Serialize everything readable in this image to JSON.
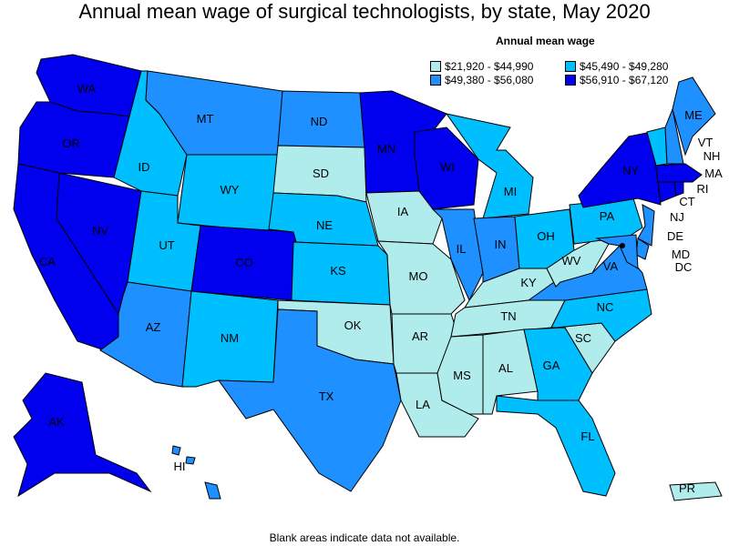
{
  "title": "Annual mean wage of surgical technologists, by state, May 2020",
  "legend": {
    "title": "Annual mean wage",
    "items": [
      {
        "label": "$21,920 - $44,990",
        "color": "#b0ecec"
      },
      {
        "label": "$45,490 - $49,280",
        "color": "#00bfff"
      },
      {
        "label": "$49,380 - $56,080",
        "color": "#1e90ff"
      },
      {
        "label": "$56,910 - $67,120",
        "color": "#0000ee"
      }
    ]
  },
  "footnote": "Blank areas indicate data not available.",
  "states": [
    {
      "abbr": "WA",
      "tier": 3
    },
    {
      "abbr": "OR",
      "tier": 3
    },
    {
      "abbr": "CA",
      "tier": 3
    },
    {
      "abbr": "NV",
      "tier": 3
    },
    {
      "abbr": "ID",
      "tier": 1
    },
    {
      "abbr": "MT",
      "tier": 2
    },
    {
      "abbr": "WY",
      "tier": 1
    },
    {
      "abbr": "UT",
      "tier": 1
    },
    {
      "abbr": "AZ",
      "tier": 2
    },
    {
      "abbr": "CO",
      "tier": 3
    },
    {
      "abbr": "NM",
      "tier": 1
    },
    {
      "abbr": "ND",
      "tier": 2
    },
    {
      "abbr": "SD",
      "tier": 0
    },
    {
      "abbr": "NE",
      "tier": 1
    },
    {
      "abbr": "KS",
      "tier": 1
    },
    {
      "abbr": "OK",
      "tier": 0
    },
    {
      "abbr": "TX",
      "tier": 2
    },
    {
      "abbr": "MN",
      "tier": 3
    },
    {
      "abbr": "IA",
      "tier": 0
    },
    {
      "abbr": "MO",
      "tier": 0
    },
    {
      "abbr": "AR",
      "tier": 0
    },
    {
      "abbr": "LA",
      "tier": 0
    },
    {
      "abbr": "WI",
      "tier": 3
    },
    {
      "abbr": "IL",
      "tier": 2
    },
    {
      "abbr": "MI",
      "tier": 1
    },
    {
      "abbr": "IN",
      "tier": 2
    },
    {
      "abbr": "OH",
      "tier": 1
    },
    {
      "abbr": "KY",
      "tier": 0
    },
    {
      "abbr": "TN",
      "tier": 0
    },
    {
      "abbr": "MS",
      "tier": 0
    },
    {
      "abbr": "AL",
      "tier": 0
    },
    {
      "abbr": "GA",
      "tier": 1
    },
    {
      "abbr": "FL",
      "tier": 1
    },
    {
      "abbr": "SC",
      "tier": 0
    },
    {
      "abbr": "NC",
      "tier": 1
    },
    {
      "abbr": "VA",
      "tier": 2
    },
    {
      "abbr": "WV",
      "tier": 0
    },
    {
      "abbr": "PA",
      "tier": 1
    },
    {
      "abbr": "NY",
      "tier": 3
    },
    {
      "abbr": "VT",
      "tier": 1
    },
    {
      "abbr": "NH",
      "tier": 2
    },
    {
      "abbr": "ME",
      "tier": 2
    },
    {
      "abbr": "MA",
      "tier": 3
    },
    {
      "abbr": "RI",
      "tier": 3
    },
    {
      "abbr": "CT",
      "tier": 3
    },
    {
      "abbr": "NJ",
      "tier": 2
    },
    {
      "abbr": "DE",
      "tier": 2
    },
    {
      "abbr": "MD",
      "tier": 2
    },
    {
      "abbr": "DC",
      "tier": 3
    },
    {
      "abbr": "AK",
      "tier": 3
    },
    {
      "abbr": "HI",
      "tier": 2
    },
    {
      "abbr": "PR",
      "tier": 0
    }
  ]
}
